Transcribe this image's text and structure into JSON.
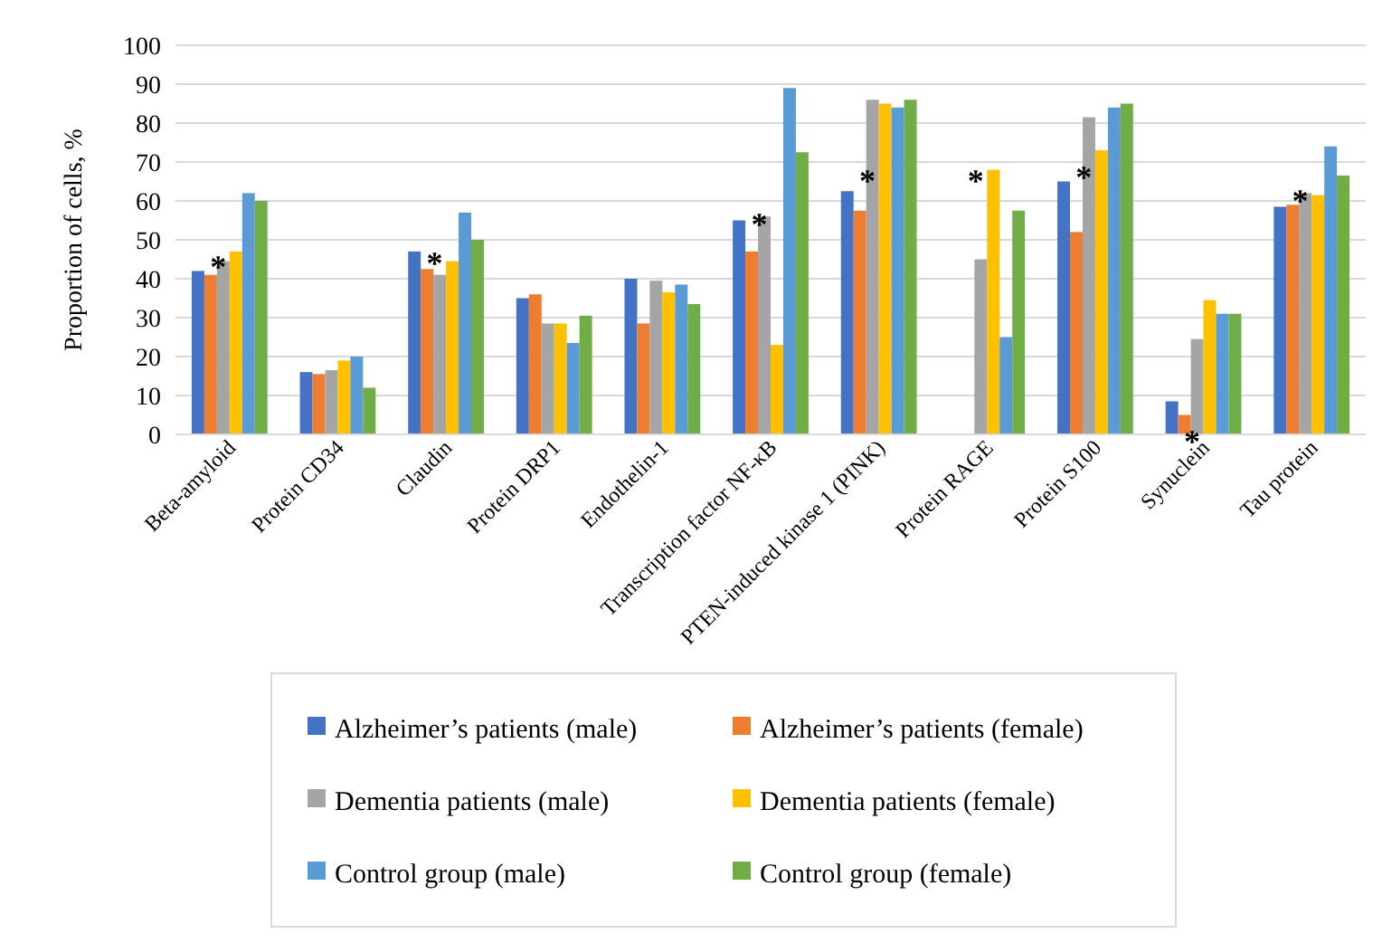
{
  "chart_data": {
    "type": "bar",
    "ylabel": "Proportion of cells, %",
    "categories": [
      "Beta-amyloid",
      "Protein CD34",
      "Claudin",
      "Protein DRP1",
      "Endothelin-1",
      "Transcription factor NF-κB",
      "PTEN-induced kinase 1 (PINK)",
      "Protein RAGE",
      "Protein S100",
      "Synuclein",
      "Tau protein"
    ],
    "series": [
      {
        "name": "Alzheimer’s patients (male)",
        "color": "#4472c4",
        "values": [
          42,
          16,
          47,
          35,
          40,
          55,
          62.5,
          null,
          65,
          8.5,
          58.5
        ]
      },
      {
        "name": "Alzheimer’s patients (female)",
        "color": "#ed7d31",
        "values": [
          41,
          15.5,
          42.5,
          36,
          28.5,
          47,
          57.5,
          null,
          52,
          5,
          59
        ]
      },
      {
        "name": "Dementia patients (male)",
        "color": "#a5a5a5",
        "values": [
          44.5,
          16.5,
          41,
          28.5,
          39.5,
          56,
          86,
          45,
          81.5,
          24.5,
          62
        ]
      },
      {
        "name": "Dementia patients (female)",
        "color": "#ffc000",
        "values": [
          47,
          19,
          44.5,
          28.5,
          36.5,
          23,
          85,
          68,
          73,
          34.5,
          61.5
        ]
      },
      {
        "name": "Control group (male)",
        "color": "#5b9bd5",
        "values": [
          62,
          20,
          57,
          23.5,
          38.5,
          89,
          84,
          25,
          84,
          31,
          74
        ]
      },
      {
        "name": "Control group (female)",
        "color": "#70ad47",
        "values": [
          60,
          12,
          50,
          30.5,
          33.5,
          72.5,
          86,
          57.5,
          85,
          31,
          66.5
        ]
      }
    ],
    "ylim": [
      0,
      100
    ],
    "yticks": [
      0,
      10,
      20,
      30,
      40,
      50,
      60,
      70,
      80,
      90,
      100
    ],
    "grid": "y",
    "legend": "bottom",
    "annotations": [
      {
        "text": "*",
        "x": "Beta-amyloid",
        "y": 44
      },
      {
        "text": "*",
        "x": "Claudin",
        "y": 45
      },
      {
        "text": "*",
        "x": "Transcription factor NF-κB",
        "y": 55
      },
      {
        "text": "*",
        "x": "PTEN-induced kinase 1 (PINK)",
        "y": 66
      },
      {
        "text": "*",
        "x": "Protein RAGE",
        "y": 66
      },
      {
        "text": "*",
        "x": "Protein S100",
        "y": 67
      },
      {
        "text": "*",
        "x": "Synuclein",
        "y": -1
      },
      {
        "text": "*",
        "x": "Tau protein",
        "y": 61
      }
    ]
  }
}
